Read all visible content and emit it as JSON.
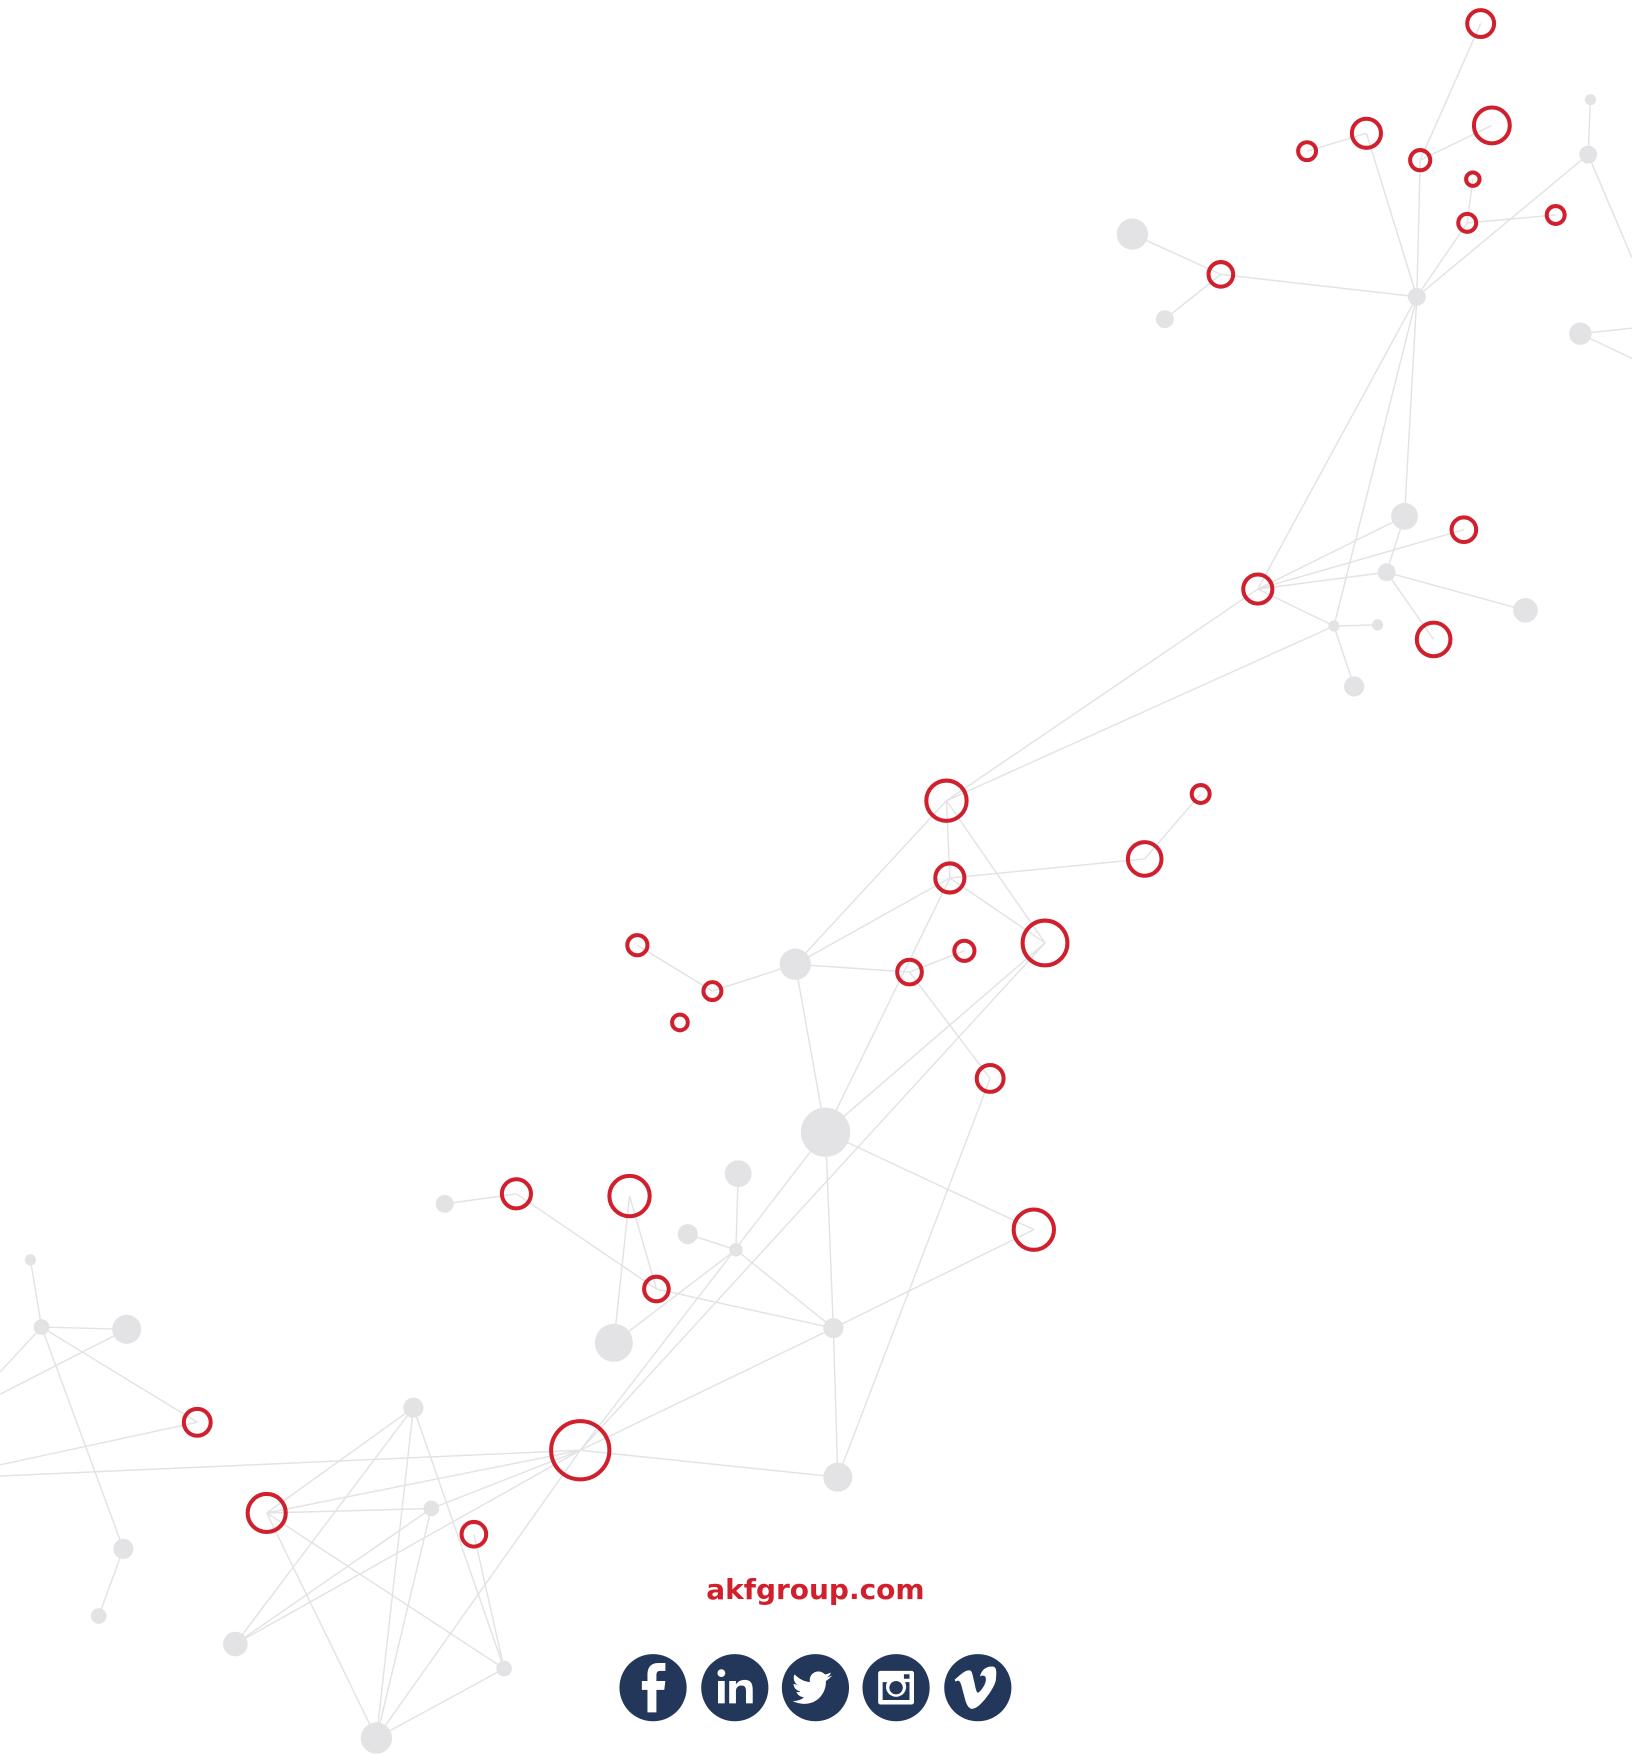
{
  "footer": {
    "website": "akfgroup.com"
  }
}
